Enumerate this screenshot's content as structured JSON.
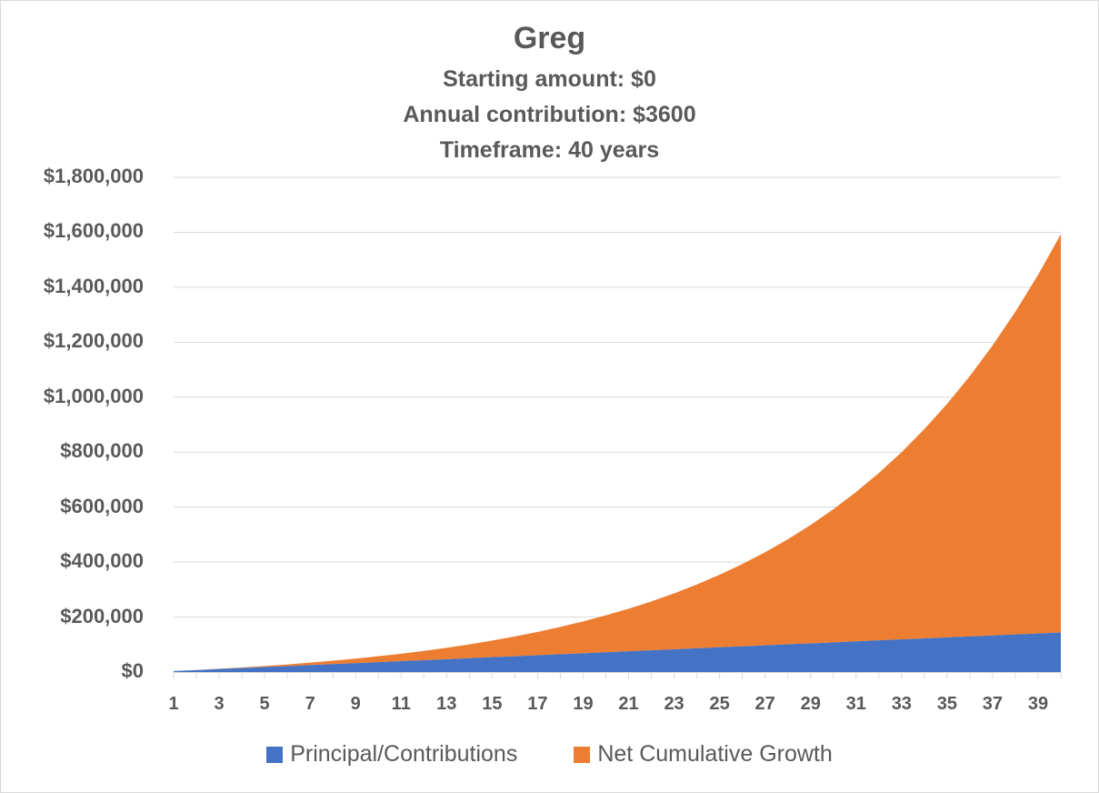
{
  "title": "Greg",
  "subtitle_lines": [
    "Starting amount:  $0",
    "Annual contribution: $3600",
    "Timeframe: 40 years"
  ],
  "y_axis": {
    "ticks": [
      "$0",
      "$200,000",
      "$400,000",
      "$600,000",
      "$800,000",
      "$1,000,000",
      "$1,200,000",
      "$1,400,000",
      "$1,600,000",
      "$1,800,000"
    ]
  },
  "x_axis": {
    "tick_labels": [
      "1",
      "3",
      "5",
      "7",
      "9",
      "11",
      "13",
      "15",
      "17",
      "19",
      "21",
      "23",
      "25",
      "27",
      "29",
      "31",
      "33",
      "35",
      "37",
      "39"
    ]
  },
  "legend": [
    {
      "label": "Principal/Contributions",
      "color": "#4472C4"
    },
    {
      "label": "Net Cumulative Growth",
      "color": "#ED7D31"
    }
  ],
  "chart_data": {
    "type": "area",
    "stacked": true,
    "title": "Greg",
    "subtitle": "Starting amount:  $0 | Annual contribution: $3600 | Timeframe: 40 years",
    "xlabel": "",
    "ylabel": "",
    "ylim": [
      0,
      1800000
    ],
    "y_tick_step": 200000,
    "grid": true,
    "legend_position": "bottom",
    "x": [
      1,
      2,
      3,
      4,
      5,
      6,
      7,
      8,
      9,
      10,
      11,
      12,
      13,
      14,
      15,
      16,
      17,
      18,
      19,
      20,
      21,
      22,
      23,
      24,
      25,
      26,
      27,
      28,
      29,
      30,
      31,
      32,
      33,
      34,
      35,
      36,
      37,
      38,
      39,
      40
    ],
    "series": [
      {
        "name": "Principal/Contributions",
        "color": "#4472C4",
        "values": [
          3600,
          7200,
          10800,
          14400,
          18000,
          21600,
          25200,
          28800,
          32400,
          36000,
          39600,
          43200,
          46800,
          50400,
          54000,
          57600,
          61200,
          64800,
          68400,
          72000,
          75600,
          79200,
          82800,
          86400,
          90000,
          93600,
          97200,
          100800,
          104400,
          108000,
          111600,
          115200,
          118800,
          122400,
          126000,
          129600,
          133200,
          136800,
          140400,
          144000
        ]
      },
      {
        "name": "Net Cumulative Growth",
        "color": "#ED7D31",
        "values": [
          0,
          360,
          1116,
          2308,
          3978,
          6176,
          8953,
          12369,
          16486,
          21375,
          27112,
          33783,
          41482,
          50310,
          60381,
          71819,
          84761,
          99357,
          115773,
          134190,
          154809,
          177850,
          203555,
          232190,
          264049,
          299454,
          338760,
          382356,
          430671,
          484178,
          543396,
          608896,
          681306,
          761316,
          849688,
          947257,
          1054942,
          1173756,
          1304812,
          1449333
        ]
      }
    ]
  }
}
